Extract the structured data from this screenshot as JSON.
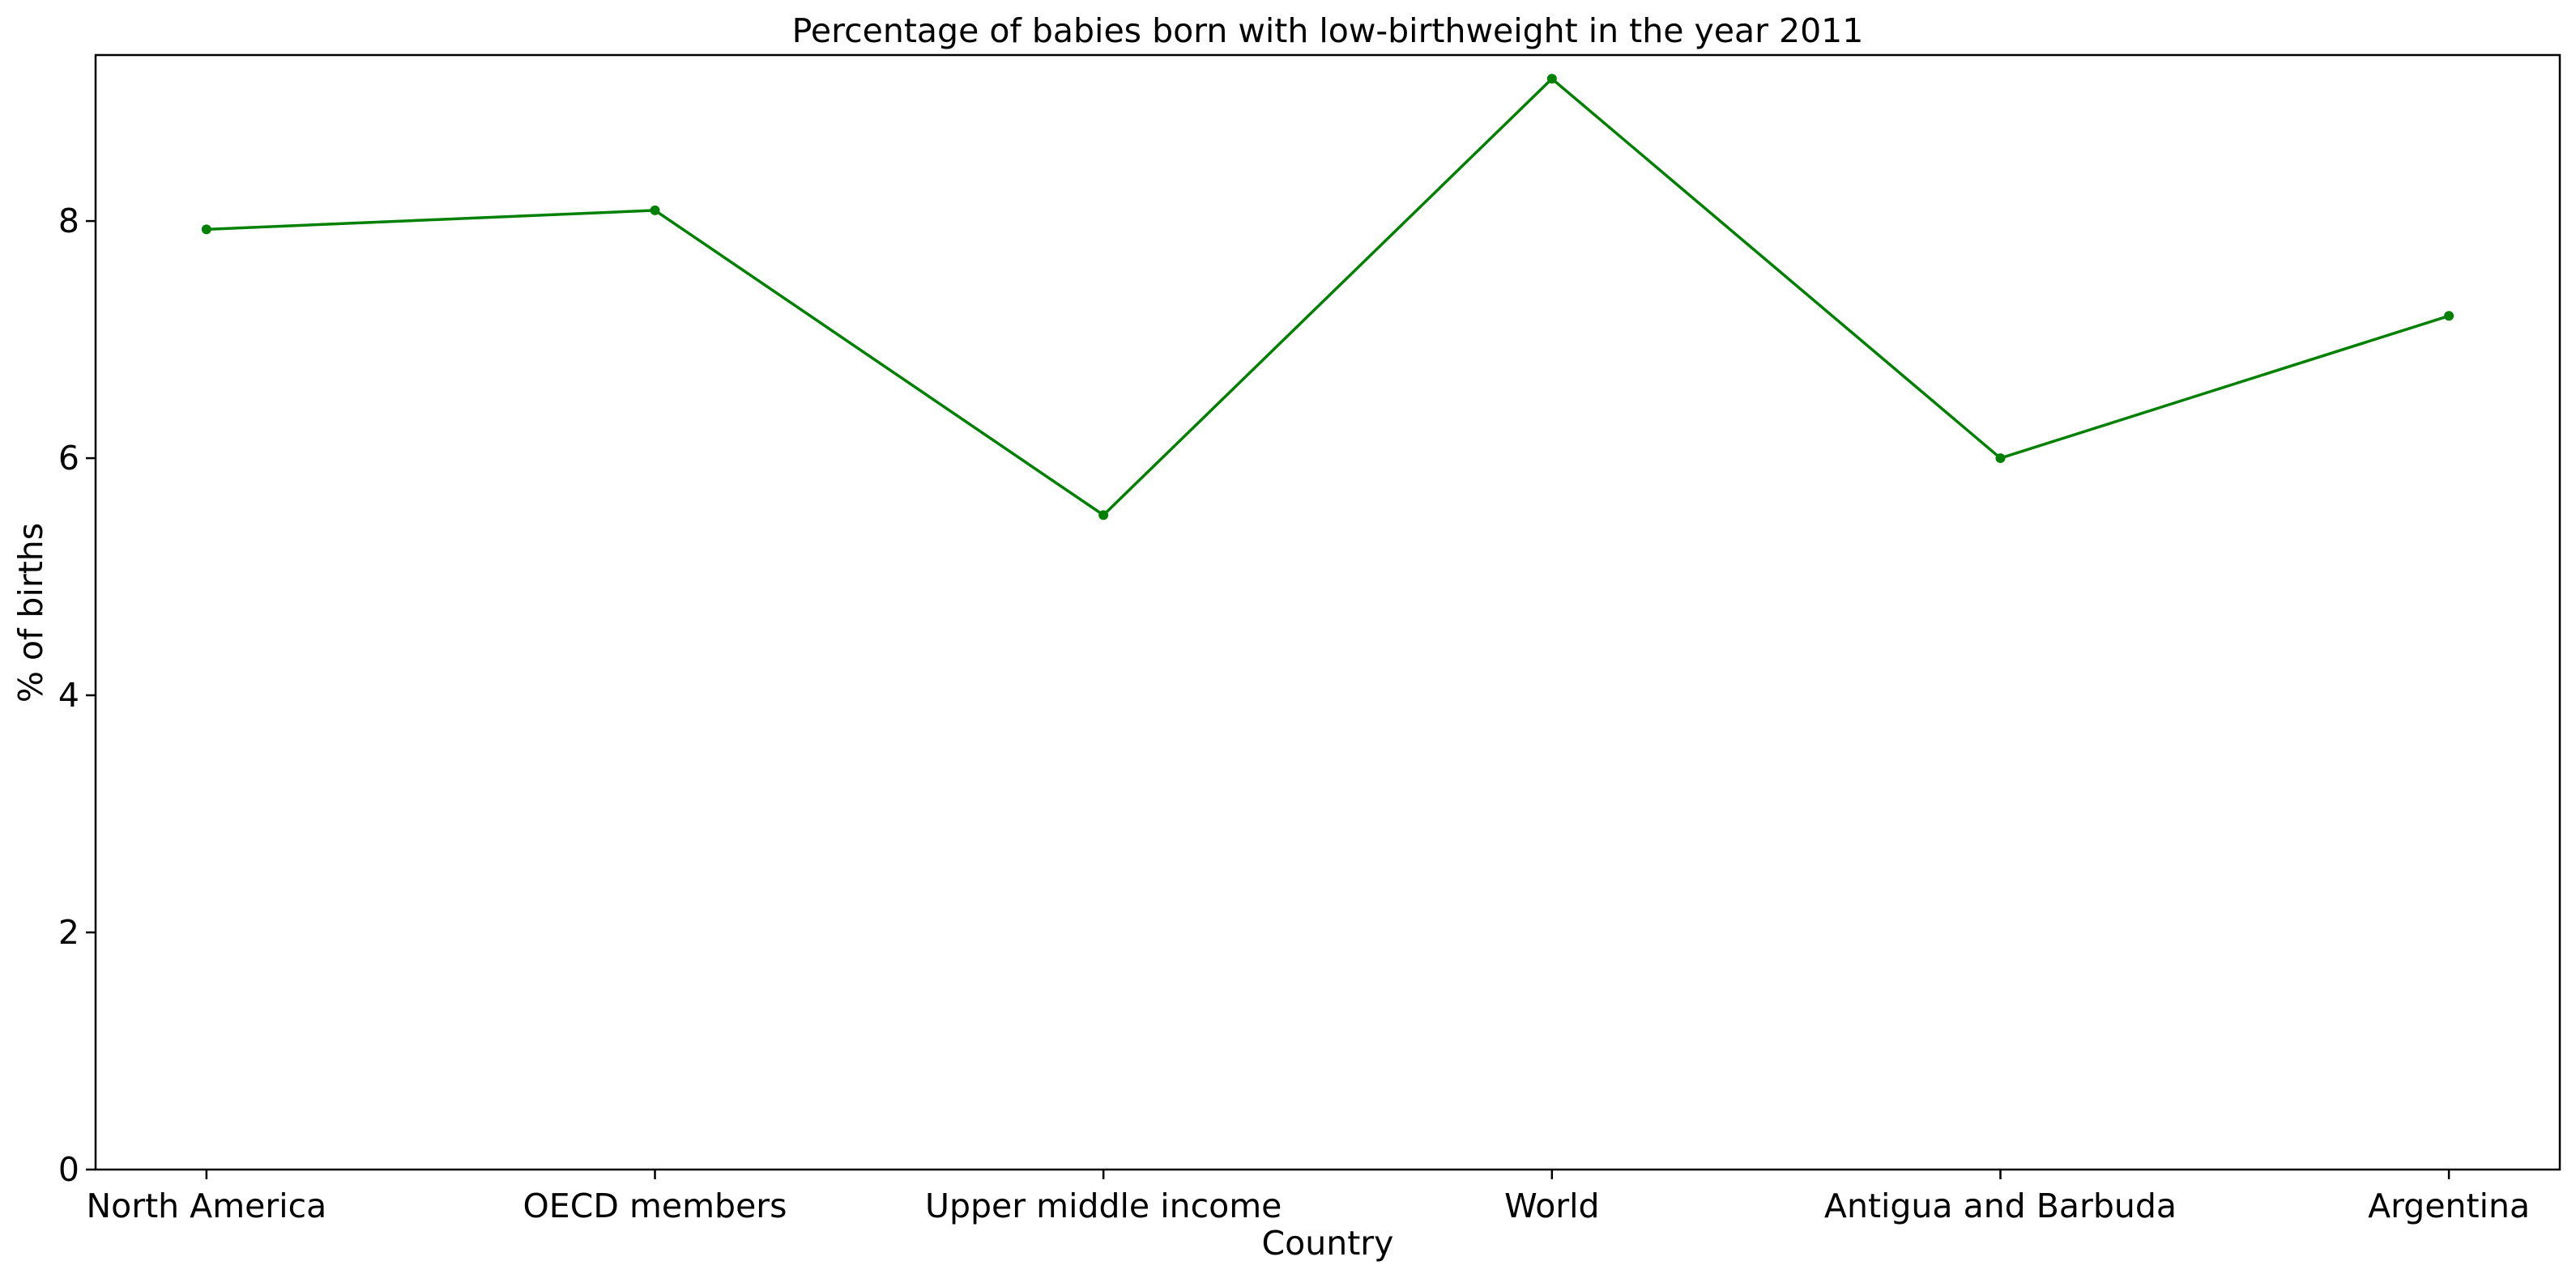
{
  "chart_data": {
    "type": "line",
    "title": "Percentage of babies born with low-birthweight in the year 2011",
    "xlabel": "Country",
    "ylabel": "% of births",
    "categories": [
      "North America",
      "OECD members",
      "Upper middle income",
      "World",
      "Antigua and Barbuda",
      "Argentina"
    ],
    "series": [
      {
        "values": [
          7.93,
          8.09,
          5.52,
          9.2,
          6.0,
          7.2
        ],
        "color": "#008000",
        "marker": "circle"
      }
    ],
    "yticks": [
      0,
      2,
      4,
      6,
      8
    ],
    "ylim": [
      0,
      9.4
    ],
    "grid": false,
    "legend": "none"
  }
}
